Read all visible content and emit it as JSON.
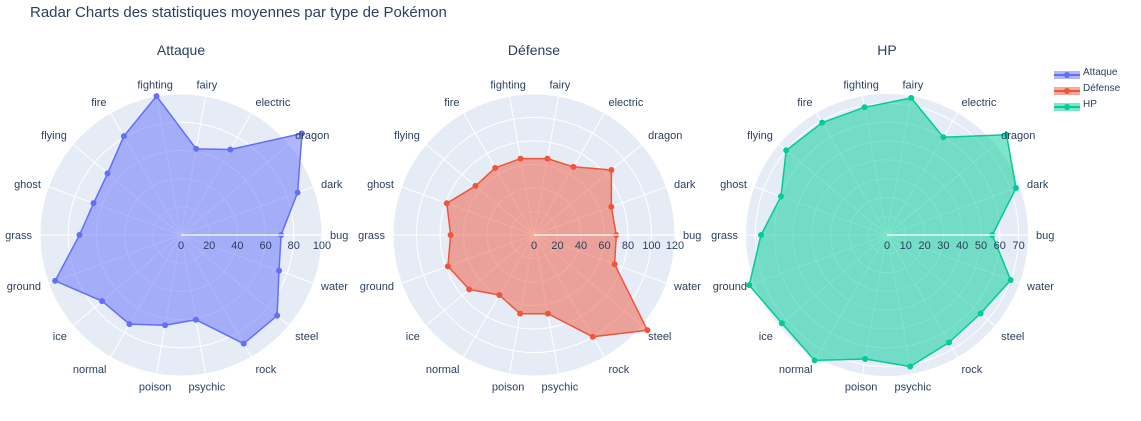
{
  "title": "Radar Charts des statistiques moyennes par type de Pokémon",
  "chart_data": [
    {
      "type": "radar",
      "title": "Attaque",
      "series_name": "Attaque",
      "color": "#636efa",
      "categories": [
        "bug",
        "dark",
        "dragon",
        "electric",
        "fairy",
        "fighting",
        "fire",
        "flying",
        "ghost",
        "grass",
        "ground",
        "ice",
        "normal",
        "poison",
        "psychic",
        "rock",
        "steel",
        "water"
      ],
      "values": [
        71,
        88,
        112,
        70,
        62,
        100,
        81,
        68,
        66,
        72,
        95,
        73,
        73,
        65,
        61,
        89,
        89,
        74
      ],
      "rrange": [
        0,
        100
      ],
      "ticks": [
        0,
        20,
        40,
        60,
        80,
        100
      ]
    },
    {
      "type": "radar",
      "title": "Défense",
      "series_name": "Défense",
      "color": "#ef553b",
      "categories": [
        "bug",
        "dark",
        "dragon",
        "electric",
        "fairy",
        "fighting",
        "fire",
        "flying",
        "ghost",
        "grass",
        "ground",
        "ice",
        "normal",
        "poison",
        "psychic",
        "rock",
        "steel",
        "water"
      ],
      "values": [
        70,
        70,
        86,
        67,
        66,
        66,
        66,
        65,
        79,
        71,
        78,
        72,
        59,
        68,
        68,
        100,
        126,
        73
      ],
      "rrange": [
        0,
        120
      ],
      "ticks": [
        0,
        20,
        40,
        60,
        80,
        100,
        120
      ]
    },
    {
      "type": "radar",
      "title": "HP",
      "series_name": "HP",
      "color": "#00cc96",
      "categories": [
        "bug",
        "dark",
        "dragon",
        "electric",
        "fairy",
        "fighting",
        "fire",
        "flying",
        "ghost",
        "grass",
        "ground",
        "ice",
        "normal",
        "poison",
        "psychic",
        "rock",
        "steel",
        "water"
      ],
      "values": [
        56,
        73,
        83,
        60,
        74,
        69,
        69,
        70,
        60,
        67,
        78,
        73,
        77,
        67,
        71,
        66,
        65,
        70
      ],
      "rrange": [
        0,
        75
      ],
      "ticks": [
        0,
        10,
        20,
        30,
        40,
        50,
        60,
        70
      ]
    }
  ],
  "legend": {
    "position": "top-right",
    "items": [
      {
        "label": "Attaque",
        "color": "#636efa"
      },
      {
        "label": "Défense",
        "color": "#ef553b"
      },
      {
        "label": "HP",
        "color": "#00cc96"
      }
    ]
  }
}
